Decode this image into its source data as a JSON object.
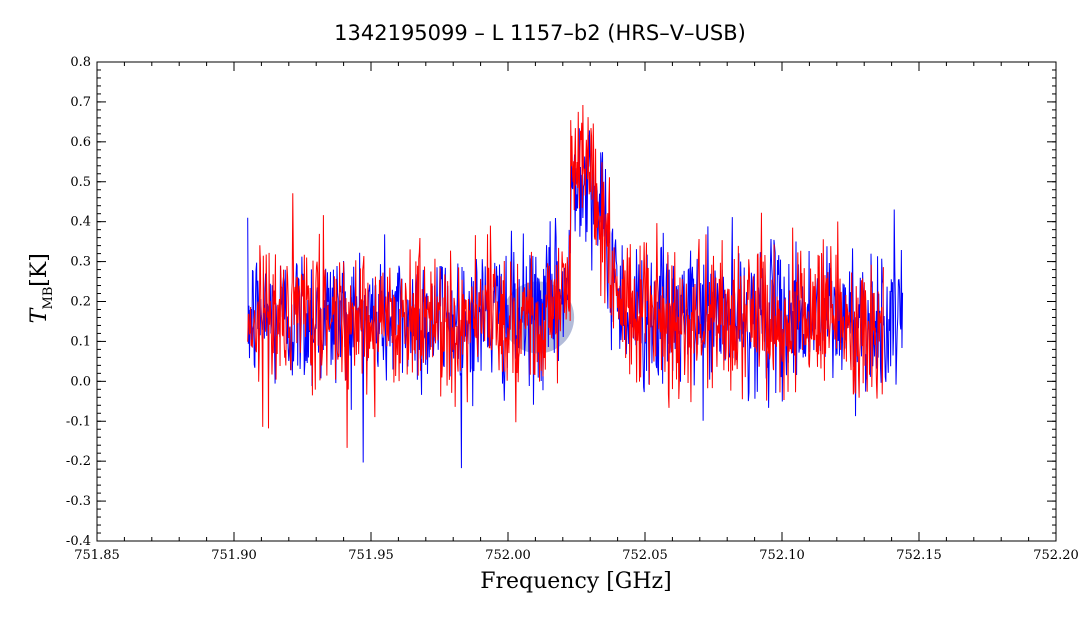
{
  "chart_data": {
    "type": "line",
    "title": "1342195099 – L 1157–b2 (HRS–V–USB)",
    "xlabel": "Frequency [GHz]",
    "ylabel_main": "T",
    "ylabel_sub": "MB",
    "ylabel_unit": "[K]",
    "xlim": [
      751.85,
      752.2
    ],
    "ylim": [
      -0.4,
      0.8
    ],
    "x_ticks": [
      751.85,
      751.9,
      751.95,
      752.0,
      752.05,
      752.1,
      752.15,
      752.2
    ],
    "x_tick_labels": [
      "751.85",
      "751.90",
      "751.95",
      "752.00",
      "752.05",
      "752.10",
      "752.15",
      "752.20"
    ],
    "y_ticks": [
      -0.4,
      -0.3,
      -0.2,
      -0.1,
      0.0,
      0.1,
      0.2,
      0.3,
      0.4,
      0.5,
      0.6,
      0.7,
      0.8
    ],
    "y_tick_labels": [
      "-0.4",
      "-0.3",
      "-0.2",
      "-0.1",
      "0.0",
      "0.1",
      "0.2",
      "0.3",
      "0.4",
      "0.5",
      "0.6",
      "0.7",
      "0.8"
    ],
    "grid": false,
    "line_peak": {
      "x": 752.027,
      "y": 0.55,
      "width": 0.012
    },
    "continuum": 0.16,
    "noise_rms": 0.09,
    "series": [
      {
        "color": "#0000ff",
        "x_start": 751.905,
        "x_end": 752.144
      },
      {
        "color": "#ff0000",
        "x_start": 751.905,
        "x_end": 752.137
      }
    ],
    "highlight_marker": {
      "x": 752.011,
      "y": 0.16,
      "color": "#8090c0"
    }
  }
}
